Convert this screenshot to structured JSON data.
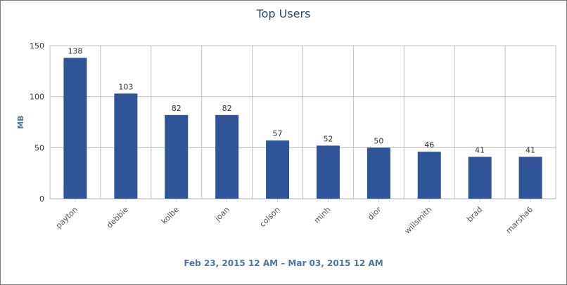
{
  "chart_data": {
    "type": "bar",
    "title": "Top Users",
    "subtitle": "Feb 23, 2015 12 AM – Mar 03, 2015 12 AM",
    "xlabel": "",
    "ylabel": "MB",
    "ylim": [
      0,
      150
    ],
    "yticks": [
      0,
      50,
      100,
      150
    ],
    "categories": [
      "payton",
      "debbie",
      "kolbe",
      "joan",
      "colson",
      "minh",
      "dior",
      "willsmith",
      "brad",
      "marsha6"
    ],
    "values": [
      138,
      103,
      82,
      82,
      57,
      52,
      50,
      46,
      41,
      41
    ],
    "grid": true,
    "legend": "none",
    "colors": {
      "bar": "#2f5497",
      "grid": "#c0c0c0",
      "axis": "#c0d0e0"
    }
  }
}
